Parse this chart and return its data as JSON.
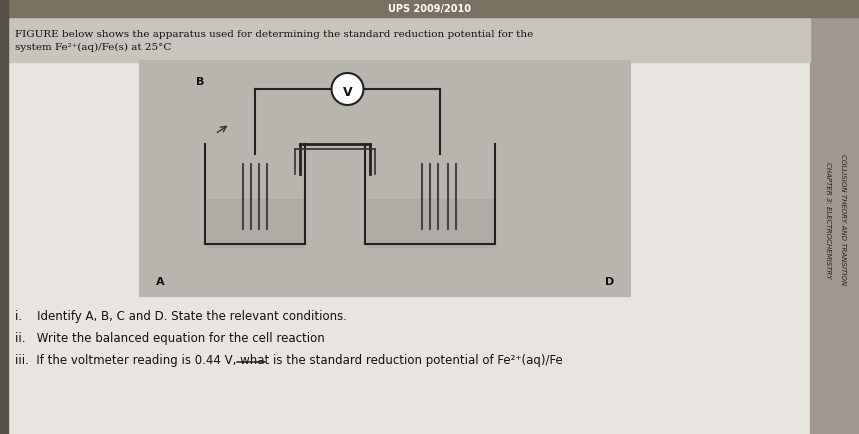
{
  "bg_color": "#d8d4ce",
  "page_bg": "#e8e4df",
  "header_text": "FIGURE below shows the apparatus used for determining the standard reduction potential for the\nsystem Fe²⁺(aq)/Fe(s) at 25°C",
  "top_banner_text": "UPS 2009/2010",
  "side_text": "CHAPTER 3: ELECTROCHEMISTRY",
  "side_text2": "COLLISION THEORY AND TRANSITION",
  "questions": [
    "i.    Identify A, B, C and D. State the relevant conditions.",
    "ii.   Write the balanced equation for the cell reaction",
    "iii.  If the voltmeter reading is 0.44 V, what is the standard reduction potential of Fe²⁺(aq)/Fe"
  ],
  "diagram_bg": "#b8b4ae",
  "title_bg": "#787060"
}
